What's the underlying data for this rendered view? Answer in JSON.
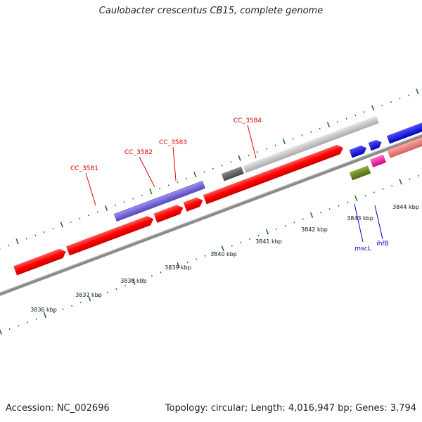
{
  "title": "Caulobacter crescentus CB15, complete genome",
  "footer": {
    "accession": "Accession: NC_002696",
    "summary": "Topology: circular; Length: 4,016,947 bp; Genes: 3,794"
  },
  "scale_labels": [
    {
      "text": "3836 kbp",
      "kbp": 3836
    },
    {
      "text": "3837 kbp",
      "kbp": 3837
    },
    {
      "text": "3838 kbp",
      "kbp": 3838
    },
    {
      "text": "3839 kbp",
      "kbp": 3839
    },
    {
      "text": "3840 kbp",
      "kbp": 3840
    },
    {
      "text": "3841 kbp",
      "kbp": 3841
    },
    {
      "text": "3842 kbp",
      "kbp": 3842
    },
    {
      "text": "3843 kbp",
      "kbp": 3843
    },
    {
      "text": "3844 kbp",
      "kbp": 3844
    }
  ],
  "gene_labels": [
    {
      "text": "CC_3581",
      "color": "#e00000"
    },
    {
      "text": "CC_3582",
      "color": "#e00000"
    },
    {
      "text": "CC_3583",
      "color": "#e00000"
    },
    {
      "text": "CC_3584",
      "color": "#e00000"
    },
    {
      "text": "mscL",
      "color": "#0000c8"
    },
    {
      "text": "ihfB",
      "color": "#0000c8"
    }
  ],
  "colors": {
    "backbone": "#8c8c8c",
    "cds": "#ff0000",
    "tick": "#1a7a1a",
    "blast_gray": "#c8c8c8",
    "blast_dark": "#666666",
    "blast_purple": "#7b6fd8",
    "blue_gene": "#1010e8",
    "pink_gene": "#ff2aa8",
    "green_feature": "#6b8e23",
    "salmon_feature": "#f08080"
  }
}
